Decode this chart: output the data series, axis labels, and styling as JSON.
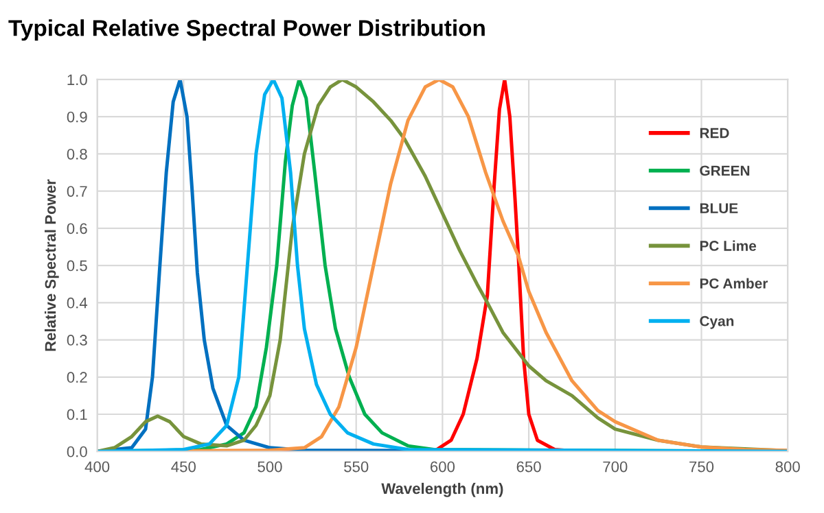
{
  "chart_data": {
    "type": "line",
    "title": "Typical Relative Spectral Power Distribution",
    "xlabel": "Wavelength (nm)",
    "ylabel": "Relative Spectral Power",
    "xlim": [
      400,
      800
    ],
    "xticks": [
      400,
      450,
      500,
      550,
      600,
      650,
      700,
      750,
      800
    ],
    "ylim": [
      0,
      1
    ],
    "yticks": [
      {
        "value": 0,
        "label": "0.0"
      },
      0.1,
      0.2,
      0.3,
      0.4,
      0.5,
      0.6,
      0.7,
      0.8,
      0.9,
      {
        "value": 1,
        "label": "1.0"
      }
    ],
    "grid": true,
    "legend": "right",
    "marker": "none",
    "line_style": "solid",
    "series": [
      {
        "name": "RED",
        "color": "#ff0000",
        "x": [
          400,
          595,
          605,
          612,
          620,
          626,
          630,
          633,
          636,
          639,
          642,
          644,
          647,
          650,
          655,
          665,
          680,
          800
        ],
        "values": [
          0,
          0,
          0.03,
          0.1,
          0.25,
          0.42,
          0.72,
          0.92,
          1.0,
          0.9,
          0.68,
          0.52,
          0.25,
          0.1,
          0.03,
          0.005,
          0,
          0
        ]
      },
      {
        "name": "GREEN",
        "color": "#00b050",
        "x": [
          400,
          460,
          475,
          485,
          492,
          498,
          504,
          509,
          513,
          517,
          521,
          526,
          532,
          538,
          546,
          555,
          565,
          580,
          595,
          800
        ],
        "values": [
          0,
          0.005,
          0.02,
          0.05,
          0.12,
          0.28,
          0.5,
          0.78,
          0.93,
          1.0,
          0.95,
          0.75,
          0.5,
          0.33,
          0.2,
          0.1,
          0.05,
          0.015,
          0.005,
          0
        ]
      },
      {
        "name": "BLUE",
        "color": "#0070c0",
        "x": [
          400,
          420,
          428,
          432,
          436,
          440,
          444,
          448,
          452,
          455,
          458,
          462,
          467,
          475,
          485,
          500,
          520,
          800
        ],
        "values": [
          0,
          0.01,
          0.06,
          0.2,
          0.48,
          0.75,
          0.94,
          1.0,
          0.9,
          0.7,
          0.48,
          0.3,
          0.17,
          0.07,
          0.03,
          0.01,
          0.003,
          0
        ]
      },
      {
        "name": "PC Lime",
        "color": "#77933c",
        "x": [
          400,
          410,
          420,
          428,
          435,
          442,
          450,
          460,
          475,
          485,
          492,
          500,
          506,
          513,
          520,
          528,
          535,
          542,
          550,
          560,
          570,
          578,
          590,
          600,
          610,
          620,
          626,
          635,
          650,
          660,
          675,
          690,
          700,
          725,
          750,
          800
        ],
        "values": [
          0,
          0.01,
          0.04,
          0.08,
          0.095,
          0.08,
          0.04,
          0.02,
          0.015,
          0.03,
          0.07,
          0.15,
          0.3,
          0.6,
          0.8,
          0.93,
          0.98,
          1.0,
          0.98,
          0.94,
          0.89,
          0.84,
          0.74,
          0.64,
          0.54,
          0.45,
          0.4,
          0.32,
          0.23,
          0.19,
          0.15,
          0.09,
          0.06,
          0.03,
          0.012,
          0.002
        ]
      },
      {
        "name": "PC Amber",
        "color": "#f79646",
        "x": [
          400,
          500,
          520,
          530,
          540,
          550,
          560,
          570,
          580,
          590,
          598,
          606,
          615,
          625,
          635,
          644,
          650,
          660,
          675,
          690,
          700,
          725,
          750,
          775,
          800
        ],
        "values": [
          0,
          0.003,
          0.01,
          0.04,
          0.12,
          0.28,
          0.5,
          0.72,
          0.89,
          0.98,
          1.0,
          0.98,
          0.9,
          0.75,
          0.62,
          0.525,
          0.43,
          0.32,
          0.19,
          0.11,
          0.08,
          0.03,
          0.012,
          0.005,
          0.003
        ]
      },
      {
        "name": "Cyan",
        "color": "#00b0f0",
        "x": [
          400,
          450,
          465,
          475,
          482,
          487,
          492,
          497,
          502,
          507,
          512,
          516,
          520,
          527,
          535,
          545,
          560,
          580,
          800
        ],
        "values": [
          0,
          0.005,
          0.02,
          0.07,
          0.2,
          0.5,
          0.8,
          0.96,
          1.0,
          0.95,
          0.75,
          0.5,
          0.33,
          0.18,
          0.1,
          0.05,
          0.02,
          0.005,
          0
        ]
      }
    ]
  }
}
